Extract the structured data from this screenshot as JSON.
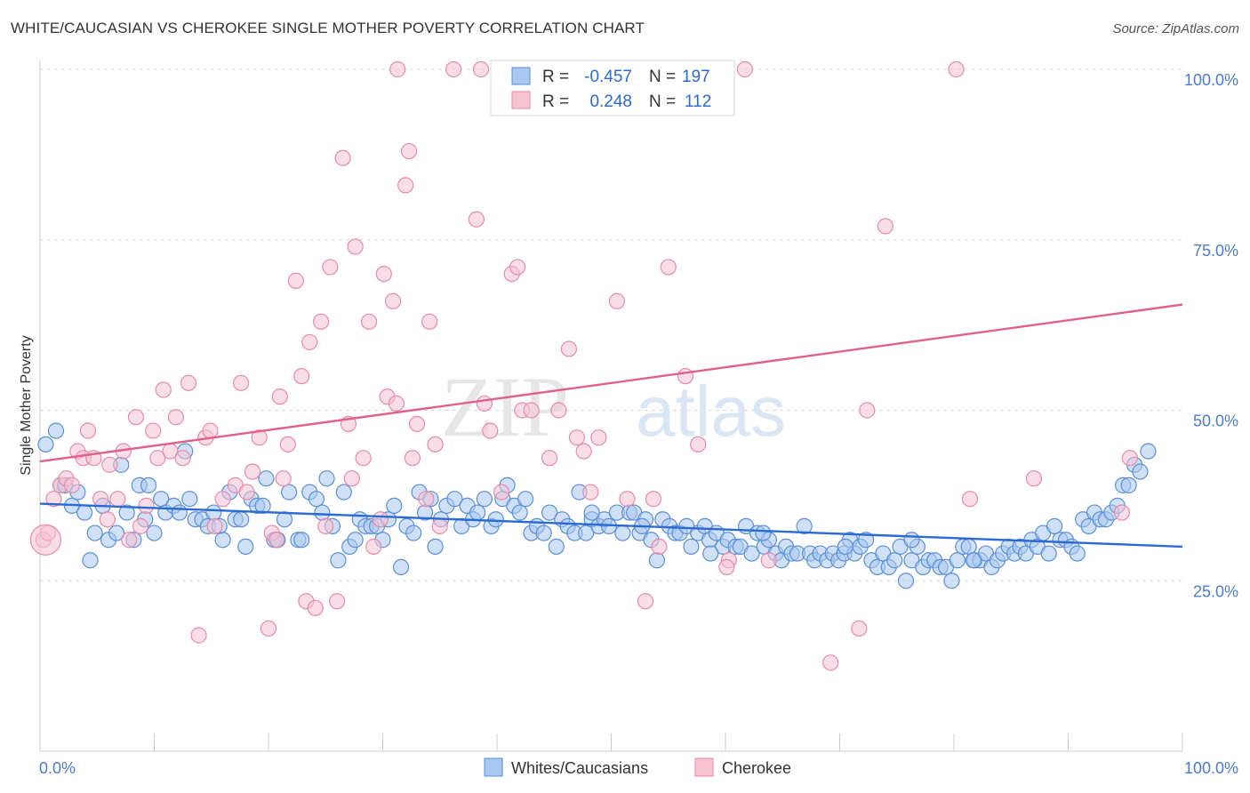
{
  "title": "WHITE/CAUCASIAN VS CHEROKEE SINGLE MOTHER POVERTY CORRELATION CHART",
  "source": "Source: ZipAtlas.com",
  "watermark": {
    "zip": "ZIP",
    "atlas": "atlas"
  },
  "colors": {
    "blue_fill": "#a9c8f0",
    "blue_stroke": "#5b8fd6",
    "blue_line": "#2a6ad4",
    "pink_fill": "#f6c3d3",
    "pink_stroke": "#e88aa8",
    "pink_line": "#e0608a",
    "grid": "#d8d8d8",
    "tick_text": "#4a7cc9"
  },
  "legend": {
    "rows": [
      {
        "series": "Whites/Caucasians",
        "r_label": "R =",
        "r_value": "-0.457",
        "n_label": "N =",
        "n_value": "197"
      },
      {
        "series": "Cherokee",
        "r_label": "R =",
        "r_value": "0.248",
        "n_label": "N =",
        "n_value": "112"
      }
    ]
  },
  "chart_data": {
    "type": "scatter",
    "title": "WHITE/CAUCASIAN VS CHEROKEE SINGLE MOTHER POVERTY CORRELATION CHART",
    "xlabel": "",
    "ylabel": "Single Mother Poverty",
    "xlim": [
      0,
      100
    ],
    "ylim": [
      0,
      100
    ],
    "x_tick_labels": [
      "0.0%",
      "100.0%"
    ],
    "y_ticks": [
      25,
      50,
      75,
      100
    ],
    "y_tick_labels": [
      "25.0%",
      "50.0%",
      "75.0%",
      "100.0%"
    ],
    "grid": "horizontal dashed",
    "legend_position": "bottom-center",
    "series": [
      {
        "name": "Whites/Caucasians",
        "r": -0.457,
        "n": 197,
        "trend": {
          "x": [
            0,
            100
          ],
          "y": [
            36.3,
            30.0
          ]
        },
        "points": [
          [
            0.5,
            45
          ],
          [
            1.4,
            47
          ],
          [
            1.8,
            39
          ],
          [
            2.2,
            39
          ],
          [
            2.8,
            36
          ],
          [
            3.3,
            38
          ],
          [
            3.9,
            35
          ],
          [
            4.4,
            28
          ],
          [
            4.8,
            32
          ],
          [
            5.5,
            36
          ],
          [
            6,
            31
          ],
          [
            6.7,
            32
          ],
          [
            7.1,
            42
          ],
          [
            7.6,
            35
          ],
          [
            8.2,
            31
          ],
          [
            8.7,
            39
          ],
          [
            9.2,
            34
          ],
          [
            9.5,
            39
          ],
          [
            10,
            32
          ],
          [
            10.6,
            37
          ],
          [
            11,
            35
          ],
          [
            11.7,
            36
          ],
          [
            12.2,
            35
          ],
          [
            12.7,
            44
          ],
          [
            13.1,
            37
          ],
          [
            13.6,
            34
          ],
          [
            14.2,
            34
          ],
          [
            14.7,
            33
          ],
          [
            15.2,
            35
          ],
          [
            15.7,
            33
          ],
          [
            16,
            31
          ],
          [
            16.6,
            38
          ],
          [
            17.1,
            34
          ],
          [
            17.6,
            34
          ],
          [
            18,
            30
          ],
          [
            18.5,
            37
          ],
          [
            19,
            36
          ],
          [
            19.5,
            36
          ],
          [
            19.8,
            40
          ],
          [
            20.5,
            31
          ],
          [
            20.8,
            31
          ],
          [
            21.4,
            34
          ],
          [
            21.8,
            38
          ],
          [
            22.6,
            31
          ],
          [
            22.9,
            31
          ],
          [
            23.6,
            38
          ],
          [
            24.2,
            37
          ],
          [
            24.7,
            35
          ],
          [
            25.1,
            40
          ],
          [
            25.6,
            33
          ],
          [
            26.1,
            28
          ],
          [
            26.6,
            38
          ],
          [
            27.1,
            30
          ],
          [
            27.6,
            31
          ],
          [
            28,
            34
          ],
          [
            28.5,
            33
          ],
          [
            29,
            33
          ],
          [
            29.5,
            33
          ],
          [
            30,
            31
          ],
          [
            30.5,
            34
          ],
          [
            31,
            36
          ],
          [
            31.6,
            27
          ],
          [
            32.1,
            33
          ],
          [
            32.7,
            32
          ],
          [
            33.2,
            38
          ],
          [
            33.7,
            35
          ],
          [
            34.2,
            37
          ],
          [
            34.6,
            30
          ],
          [
            35.1,
            34
          ],
          [
            35.6,
            36
          ],
          [
            36.3,
            37
          ],
          [
            36.9,
            33
          ],
          [
            37.4,
            36
          ],
          [
            37.9,
            34
          ],
          [
            38.3,
            35
          ],
          [
            38.9,
            37
          ],
          [
            39.5,
            33
          ],
          [
            39.9,
            34
          ],
          [
            40.5,
            37
          ],
          [
            40.9,
            39
          ],
          [
            41.5,
            36
          ],
          [
            42,
            35
          ],
          [
            42.5,
            37
          ],
          [
            43,
            32
          ],
          [
            43.5,
            33
          ],
          [
            44.1,
            32
          ],
          [
            44.6,
            35
          ],
          [
            45.2,
            30
          ],
          [
            45.7,
            34
          ],
          [
            46.2,
            33
          ],
          [
            46.8,
            32
          ],
          [
            47.2,
            38
          ],
          [
            47.8,
            32
          ],
          [
            48.3,
            34
          ],
          [
            48.9,
            33
          ],
          [
            49.4,
            34
          ],
          [
            49.8,
            33
          ],
          [
            50.5,
            35
          ],
          [
            51,
            32
          ],
          [
            51.6,
            35
          ],
          [
            52,
            35
          ],
          [
            52.5,
            32
          ],
          [
            53,
            34
          ],
          [
            53.5,
            31
          ],
          [
            54,
            28
          ],
          [
            54.5,
            34
          ],
          [
            55.1,
            33
          ],
          [
            55.6,
            32
          ],
          [
            56,
            32
          ],
          [
            56.6,
            33
          ],
          [
            57,
            30
          ],
          [
            57.6,
            32
          ],
          [
            58.2,
            33
          ],
          [
            58.6,
            31
          ],
          [
            59.2,
            32
          ],
          [
            59.8,
            30
          ],
          [
            60.2,
            31
          ],
          [
            60.9,
            30
          ],
          [
            61.3,
            30
          ],
          [
            61.8,
            33
          ],
          [
            62.3,
            29
          ],
          [
            62.8,
            32
          ],
          [
            63.4,
            30
          ],
          [
            63.8,
            31
          ],
          [
            64.4,
            29
          ],
          [
            64.9,
            28
          ],
          [
            65.3,
            30
          ],
          [
            65.8,
            29
          ],
          [
            66.3,
            29
          ],
          [
            66.9,
            33
          ],
          [
            67.4,
            29
          ],
          [
            67.8,
            28
          ],
          [
            68.3,
            29
          ],
          [
            68.9,
            28
          ],
          [
            69.4,
            29
          ],
          [
            69.9,
            28
          ],
          [
            70.4,
            29
          ],
          [
            70.9,
            31
          ],
          [
            71.3,
            29
          ],
          [
            71.8,
            30
          ],
          [
            72.3,
            31
          ],
          [
            72.8,
            28
          ],
          [
            73.3,
            27
          ],
          [
            73.8,
            29
          ],
          [
            74.3,
            27
          ],
          [
            74.8,
            28
          ],
          [
            75.3,
            30
          ],
          [
            75.8,
            25
          ],
          [
            76.3,
            28
          ],
          [
            76.8,
            30
          ],
          [
            77.3,
            27
          ],
          [
            77.8,
            28
          ],
          [
            78.3,
            28
          ],
          [
            78.8,
            27
          ],
          [
            79.3,
            27
          ],
          [
            79.8,
            25
          ],
          [
            80.3,
            28
          ],
          [
            80.8,
            30
          ],
          [
            81.3,
            30
          ],
          [
            81.8,
            28
          ],
          [
            82.3,
            28
          ],
          [
            82.8,
            29
          ],
          [
            83.3,
            27
          ],
          [
            83.8,
            28
          ],
          [
            84.3,
            29
          ],
          [
            84.8,
            30
          ],
          [
            85.3,
            29
          ],
          [
            85.8,
            30
          ],
          [
            86.3,
            29
          ],
          [
            86.8,
            31
          ],
          [
            87.3,
            30
          ],
          [
            87.8,
            32
          ],
          [
            88.3,
            29
          ],
          [
            88.8,
            33
          ],
          [
            89.3,
            31
          ],
          [
            89.8,
            31
          ],
          [
            90.3,
            30
          ],
          [
            90.8,
            29
          ],
          [
            91.3,
            34
          ],
          [
            91.8,
            33
          ],
          [
            92.3,
            35
          ],
          [
            92.8,
            34
          ],
          [
            93.3,
            34
          ],
          [
            93.8,
            35
          ],
          [
            94.3,
            36
          ],
          [
            94.8,
            39
          ],
          [
            95.3,
            39
          ],
          [
            95.8,
            42
          ],
          [
            96.3,
            41
          ],
          [
            97,
            44
          ],
          [
            48.3,
            35
          ],
          [
            52.7,
            33
          ],
          [
            58.7,
            29
          ],
          [
            63.3,
            32
          ],
          [
            70.5,
            30
          ],
          [
            76.3,
            31
          ],
          [
            81.7,
            28
          ]
        ]
      },
      {
        "name": "Cherokee",
        "r": 0.248,
        "n": 112,
        "trend": {
          "x": [
            0,
            100
          ],
          "y": [
            42.5,
            65.5
          ]
        },
        "points": [
          [
            0.3,
            31
          ],
          [
            0.7,
            32
          ],
          [
            1.2,
            37
          ],
          [
            1.8,
            39
          ],
          [
            2.3,
            40
          ],
          [
            2.8,
            39
          ],
          [
            3.3,
            44
          ],
          [
            3.8,
            43
          ],
          [
            4.2,
            47
          ],
          [
            4.7,
            43
          ],
          [
            5.3,
            37
          ],
          [
            5.9,
            34
          ],
          [
            6.1,
            42
          ],
          [
            6.8,
            37
          ],
          [
            7.3,
            44
          ],
          [
            7.8,
            31
          ],
          [
            8.4,
            49
          ],
          [
            8.8,
            33
          ],
          [
            9.3,
            36
          ],
          [
            9.9,
            47
          ],
          [
            10.3,
            43
          ],
          [
            10.8,
            53
          ],
          [
            11.4,
            44
          ],
          [
            11.9,
            49
          ],
          [
            12.5,
            43
          ],
          [
            13,
            54
          ],
          [
            13.9,
            17
          ],
          [
            14.5,
            46
          ],
          [
            14.9,
            47
          ],
          [
            15.3,
            33
          ],
          [
            16,
            37
          ],
          [
            17.1,
            39
          ],
          [
            17.6,
            54
          ],
          [
            18.1,
            38
          ],
          [
            18.6,
            41
          ],
          [
            19.2,
            46
          ],
          [
            20,
            18
          ],
          [
            20.3,
            32
          ],
          [
            20.7,
            31
          ],
          [
            21,
            52
          ],
          [
            21.3,
            40
          ],
          [
            21.7,
            45
          ],
          [
            22.4,
            69
          ],
          [
            22.9,
            55
          ],
          [
            23.3,
            22
          ],
          [
            23.6,
            60
          ],
          [
            24.1,
            21
          ],
          [
            24.6,
            63
          ],
          [
            25,
            33
          ],
          [
            25.4,
            71
          ],
          [
            26,
            22
          ],
          [
            26.5,
            87
          ],
          [
            27,
            48
          ],
          [
            27.3,
            40
          ],
          [
            27.6,
            74
          ],
          [
            28.3,
            43
          ],
          [
            28.8,
            63
          ],
          [
            29.2,
            30
          ],
          [
            29.8,
            34
          ],
          [
            30.4,
            52
          ],
          [
            30.9,
            66
          ],
          [
            31.2,
            51
          ],
          [
            32,
            83
          ],
          [
            32.3,
            88
          ],
          [
            32.6,
            43
          ],
          [
            33,
            48
          ],
          [
            33.8,
            37
          ],
          [
            34.1,
            63
          ],
          [
            34.6,
            45
          ],
          [
            35,
            33
          ],
          [
            36.2,
            100
          ],
          [
            38.6,
            100
          ],
          [
            38.2,
            78
          ],
          [
            38.9,
            51
          ],
          [
            39.4,
            47
          ],
          [
            40.4,
            38
          ],
          [
            41.3,
            70
          ],
          [
            41.8,
            71
          ],
          [
            42.2,
            50
          ],
          [
            43,
            50
          ],
          [
            44.6,
            43
          ],
          [
            45.4,
            50
          ],
          [
            46.3,
            59
          ],
          [
            47,
            46
          ],
          [
            47.6,
            44
          ],
          [
            48.2,
            38
          ],
          [
            48.9,
            46
          ],
          [
            50.5,
            66
          ],
          [
            51.4,
            37
          ],
          [
            53,
            22
          ],
          [
            53.7,
            37
          ],
          [
            54.2,
            30
          ],
          [
            55,
            71
          ],
          [
            56.5,
            55
          ],
          [
            57.6,
            45
          ],
          [
            59.3,
            100
          ],
          [
            60.3,
            28
          ],
          [
            61.7,
            100
          ],
          [
            63.8,
            28
          ],
          [
            69.2,
            13
          ],
          [
            71.7,
            18
          ],
          [
            72.4,
            50
          ],
          [
            74,
            77
          ],
          [
            80.2,
            100
          ],
          [
            81.4,
            37
          ],
          [
            87,
            40
          ],
          [
            95.4,
            43
          ],
          [
            94.7,
            35
          ],
          [
            31.3,
            100
          ],
          [
            30.1,
            70
          ],
          [
            57.3,
            100
          ],
          [
            60.1,
            27
          ]
        ]
      }
    ]
  }
}
